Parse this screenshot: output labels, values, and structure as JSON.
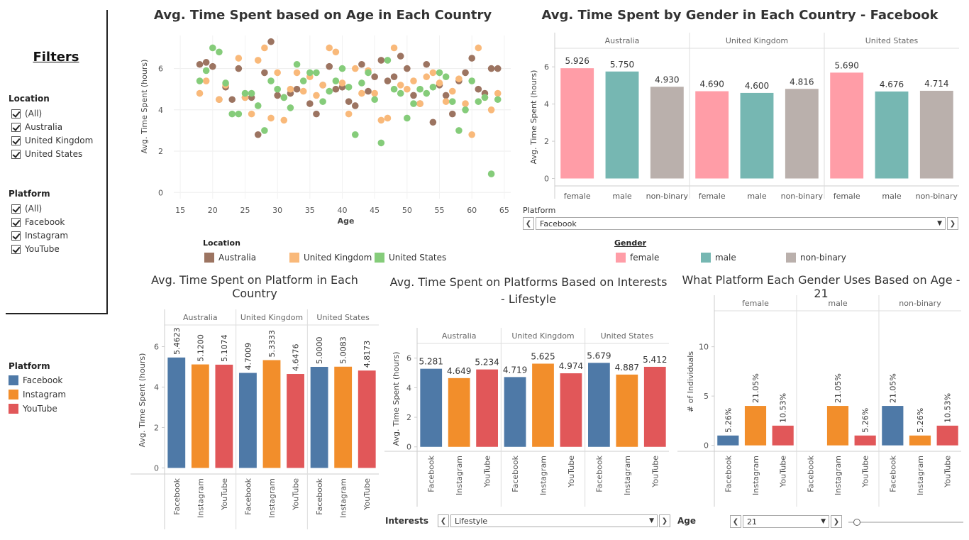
{
  "colors": {
    "brown": "#9c7461",
    "orange_light": "#f9b97a",
    "green": "#85cc7a",
    "female": "#ff9da7",
    "male": "#76b7b2",
    "nonbinary": "#bab0ac",
    "facebook": "#4e79a7",
    "instagram": "#f28e2b",
    "youtube": "#e15759"
  },
  "filters": {
    "title": "Filters",
    "location": {
      "title": "Location",
      "items": [
        "(All)",
        "Australia",
        "United Kingdom",
        "United States"
      ]
    },
    "platform": {
      "title": "Platform",
      "items": [
        "(All)",
        "Facebook",
        "Instagram",
        "YouTube"
      ]
    }
  },
  "platform_legend": {
    "title": "Platform",
    "items": [
      "Facebook",
      "Instagram",
      "YouTube"
    ]
  },
  "location_legend": {
    "title": "Location",
    "items": [
      "Australia",
      "United Kingdom",
      "United States"
    ]
  },
  "gender_legend": {
    "title": "Gender",
    "items": [
      "female",
      "male",
      "non-binary"
    ]
  },
  "controls": {
    "platform_label": "Platform",
    "platform_value": "Facebook",
    "interests_label": "Interests",
    "interests_value": "Lifestyle",
    "age_label": "Age",
    "age_value": "21"
  },
  "chart_data": [
    {
      "id": "scatter",
      "type": "scatter",
      "title": "Avg. Time Spent based on Age in Each Country",
      "xlabel": "Age",
      "ylabel": "Avg. Time Spent (hours)",
      "xlim": [
        14,
        66
      ],
      "ylim": [
        -0.3,
        7.6
      ],
      "xticks": [
        15,
        20,
        25,
        30,
        35,
        40,
        45,
        50,
        55,
        60,
        65
      ],
      "yticks": [
        0,
        2,
        4,
        6
      ],
      "series": [
        {
          "name": "Australia",
          "color": "#9c7461",
          "points": [
            [
              18,
              6.2
            ],
            [
              19,
              6.3
            ],
            [
              20,
              6.1
            ],
            [
              21,
              4.5
            ],
            [
              22,
              5.1
            ],
            [
              23,
              4.5
            ],
            [
              24,
              6.0
            ],
            [
              25,
              4.6
            ],
            [
              26,
              4.6
            ],
            [
              27,
              2.8
            ],
            [
              28,
              5.8
            ],
            [
              29,
              7.3
            ],
            [
              30,
              4.7
            ],
            [
              31,
              4.6
            ],
            [
              32,
              4.8
            ],
            [
              33,
              5.0
            ],
            [
              35,
              4.3
            ],
            [
              36,
              3.8
            ],
            [
              37,
              5.2
            ],
            [
              38,
              6.1
            ],
            [
              39,
              5.0
            ],
            [
              40,
              5.1
            ],
            [
              41,
              4.4
            ],
            [
              42,
              4.2
            ],
            [
              43,
              6.2
            ],
            [
              44,
              4.9
            ],
            [
              45,
              5.6
            ],
            [
              46,
              6.4
            ],
            [
              47,
              5.4
            ],
            [
              48,
              5.6
            ],
            [
              49,
              6.6
            ],
            [
              50,
              6.0
            ],
            [
              51,
              4.7
            ],
            [
              52,
              4.3
            ],
            [
              53,
              6.2
            ],
            [
              54,
              3.4
            ],
            [
              55,
              5.2
            ],
            [
              56,
              4.7
            ],
            [
              57,
              3.8
            ],
            [
              58,
              5.4
            ],
            [
              59,
              5.8
            ],
            [
              60,
              6.5
            ],
            [
              61,
              5.0
            ],
            [
              62,
              4.8
            ],
            [
              63,
              6.0
            ],
            [
              64,
              6.0
            ]
          ]
        },
        {
          "name": "United Kingdom",
          "color": "#f9b97a",
          "points": [
            [
              18,
              4.8
            ],
            [
              19,
              5.4
            ],
            [
              21,
              4.5
            ],
            [
              22,
              5.2
            ],
            [
              24,
              6.5
            ],
            [
              25,
              4.6
            ],
            [
              26,
              3.8
            ],
            [
              27,
              6.4
            ],
            [
              28,
              7.0
            ],
            [
              29,
              3.6
            ],
            [
              30,
              5.8
            ],
            [
              31,
              3.5
            ],
            [
              32,
              5.0
            ],
            [
              33,
              5.8
            ],
            [
              34,
              4.9
            ],
            [
              35,
              5.6
            ],
            [
              36,
              4.7
            ],
            [
              37,
              5.2
            ],
            [
              38,
              7.0
            ],
            [
              39,
              6.8
            ],
            [
              40,
              5.3
            ],
            [
              41,
              3.8
            ],
            [
              42,
              6.0
            ],
            [
              43,
              4.8
            ],
            [
              44,
              5.9
            ],
            [
              45,
              4.8
            ],
            [
              46,
              3.5
            ],
            [
              47,
              3.6
            ],
            [
              48,
              7.0
            ],
            [
              49,
              5.2
            ],
            [
              50,
              5.0
            ],
            [
              51,
              5.4
            ],
            [
              52,
              4.3
            ],
            [
              53,
              5.6
            ],
            [
              54,
              5.8
            ],
            [
              55,
              5.3
            ],
            [
              56,
              4.4
            ],
            [
              57,
              4.9
            ],
            [
              58,
              5.5
            ],
            [
              59,
              4.3
            ],
            [
              60,
              2.8
            ],
            [
              61,
              7.0
            ],
            [
              62,
              4.6
            ],
            [
              63,
              4.0
            ],
            [
              64,
              4.8
            ]
          ]
        },
        {
          "name": "United States",
          "color": "#85cc7a",
          "points": [
            [
              18,
              5.4
            ],
            [
              19,
              5.9
            ],
            [
              20,
              7.0
            ],
            [
              21,
              6.8
            ],
            [
              22,
              5.3
            ],
            [
              23,
              3.8
            ],
            [
              24,
              3.8
            ],
            [
              25,
              4.8
            ],
            [
              26,
              4.8
            ],
            [
              27,
              4.2
            ],
            [
              28,
              3.0
            ],
            [
              29,
              5.4
            ],
            [
              30,
              5.0
            ],
            [
              31,
              4.6
            ],
            [
              32,
              4.1
            ],
            [
              33,
              6.2
            ],
            [
              34,
              5.4
            ],
            [
              35,
              5.8
            ],
            [
              36,
              5.8
            ],
            [
              37,
              4.4
            ],
            [
              38,
              4.9
            ],
            [
              39,
              5.4
            ],
            [
              40,
              6.0
            ],
            [
              41,
              5.1
            ],
            [
              42,
              2.8
            ],
            [
              43,
              5.3
            ],
            [
              44,
              5.8
            ],
            [
              45,
              4.5
            ],
            [
              46,
              2.4
            ],
            [
              47,
              6.4
            ],
            [
              48,
              5.0
            ],
            [
              49,
              4.8
            ],
            [
              50,
              3.6
            ],
            [
              51,
              4.3
            ],
            [
              52,
              5.0
            ],
            [
              53,
              4.8
            ],
            [
              54,
              5.1
            ],
            [
              55,
              5.8
            ],
            [
              56,
              5.6
            ],
            [
              57,
              4.4
            ],
            [
              58,
              3.0
            ],
            [
              59,
              4.0
            ],
            [
              60,
              5.4
            ],
            [
              61,
              4.4
            ],
            [
              62,
              4.6
            ],
            [
              63,
              0.9
            ],
            [
              64,
              4.5
            ]
          ]
        }
      ]
    },
    {
      "id": "gender_fb",
      "type": "bar",
      "title": "Avg. Time Spent by Gender in Each Country - Facebook",
      "ylabel": "Avg. Time Spent (hours)",
      "ylim": [
        -0.4,
        7.0
      ],
      "yticks": [
        0,
        2,
        4,
        6
      ],
      "groups": [
        "Australia",
        "United Kingdom",
        "United States"
      ],
      "categories": [
        "female",
        "male",
        "non-binary"
      ],
      "values": [
        [
          5.926,
          5.75,
          4.93
        ],
        [
          4.69,
          4.6,
          4.816
        ],
        [
          5.69,
          4.676,
          4.714
        ]
      ],
      "labels": [
        [
          "5.926",
          "5.750",
          "4.930"
        ],
        [
          "4.690",
          "4.600",
          "4.816"
        ],
        [
          "5.690",
          "4.676",
          "4.714"
        ]
      ],
      "colors": [
        "#ff9da7",
        "#76b7b2",
        "#bab0ac"
      ]
    },
    {
      "id": "platform_country",
      "type": "bar",
      "title": "Avg. Time Spent on Platform in Each Country",
      "ylabel": "Avg. Time Spent (hours)",
      "ylim": [
        -0.3,
        7.0
      ],
      "yticks": [
        0,
        2,
        4,
        6
      ],
      "groups": [
        "Australia",
        "United Kingdom",
        "United States"
      ],
      "categories": [
        "Facebook",
        "Instagram",
        "YouTube"
      ],
      "values": [
        [
          5.4623,
          5.12,
          5.1074
        ],
        [
          4.7009,
          5.3333,
          4.6476
        ],
        [
          5.0,
          5.0083,
          4.8173
        ]
      ],
      "labels": [
        [
          "5.4623",
          "5.1200",
          "5.1074"
        ],
        [
          "4.7009",
          "5.3333",
          "4.6476"
        ],
        [
          "5.0000",
          "5.0083",
          "4.8173"
        ]
      ],
      "colors": [
        "#4e79a7",
        "#f28e2b",
        "#e15759"
      ]
    },
    {
      "id": "interests",
      "type": "bar",
      "title": "Avg. Time Spent on Platforms Based on Interests - Lifestyle",
      "ylabel": "Avg. Time Spent (hours)",
      "ylim": [
        -0.3,
        6.8
      ],
      "yticks": [
        0,
        2,
        4,
        6
      ],
      "groups": [
        "Australia",
        "United Kingdom",
        "United States"
      ],
      "categories": [
        "Facebook",
        "Instagram",
        "YouTube"
      ],
      "values": [
        [
          5.281,
          4.649,
          5.234
        ],
        [
          4.719,
          5.625,
          4.974
        ],
        [
          5.679,
          4.887,
          5.412
        ]
      ],
      "labels": [
        [
          "5.281",
          "4.649",
          "5.234"
        ],
        [
          "4.719",
          "5.625",
          "4.974"
        ],
        [
          "5.679",
          "4.887",
          "5.412"
        ]
      ],
      "colors": [
        "#4e79a7",
        "#f28e2b",
        "#e15759"
      ]
    },
    {
      "id": "gender_age",
      "type": "bar",
      "title": "What Platform Each Gender Uses Based on Age - 21",
      "ylabel": "# of Individuals",
      "ylim": [
        -0.6,
        13.5
      ],
      "yticks": [
        0,
        5,
        10
      ],
      "groups": [
        "female",
        "male",
        "non-binary"
      ],
      "categories": [
        "Facebook",
        "Instagram",
        "YouTube"
      ],
      "values": [
        [
          1,
          4,
          2
        ],
        [
          0,
          4,
          1
        ],
        [
          4,
          1,
          2
        ]
      ],
      "labels": [
        [
          "5.26%",
          "21.05%",
          "10.53%"
        ],
        [
          "",
          "21.05%",
          "5.26%"
        ],
        [
          "21.05%",
          "5.26%",
          "10.53%"
        ]
      ],
      "colors": [
        "#4e79a7",
        "#f28e2b",
        "#e15759"
      ]
    }
  ]
}
